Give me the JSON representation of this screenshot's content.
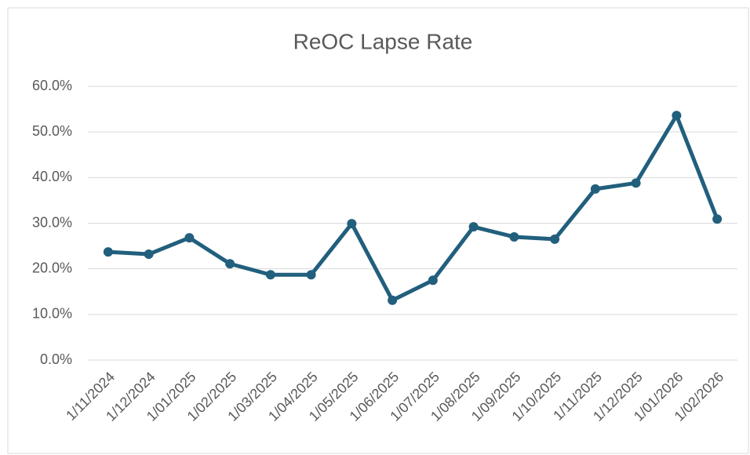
{
  "chart_data": {
    "type": "line",
    "title": "ReOC Lapse Rate",
    "categories": [
      "1/11/2024",
      "1/12/2024",
      "1/01/2025",
      "1/02/2025",
      "1/03/2025",
      "1/04/2025",
      "1/05/2025",
      "1/06/2025",
      "1/07/2025",
      "1/08/2025",
      "1/09/2025",
      "1/10/2025",
      "1/11/2025",
      "1/12/2025",
      "1/01/2026",
      "1/02/2026"
    ],
    "series": [
      {
        "name": "ReOC Lapse Rate",
        "color": "#215f7d",
        "values": [
          23.7,
          23.2,
          26.8,
          21.1,
          18.7,
          18.7,
          29.9,
          13.1,
          17.5,
          29.2,
          27.0,
          26.5,
          37.5,
          38.8,
          53.6,
          30.9
        ]
      }
    ],
    "ylim": [
      0,
      60
    ],
    "yticks": [
      {
        "value": 0,
        "label": "0.0%"
      },
      {
        "value": 10,
        "label": "10.0%"
      },
      {
        "value": 20,
        "label": "20.0%"
      },
      {
        "value": 30,
        "label": "30.0%"
      },
      {
        "value": 40,
        "label": "40.0%"
      },
      {
        "value": 50,
        "label": "50.0%"
      },
      {
        "value": 60,
        "label": "60.0%"
      }
    ],
    "grid": true
  }
}
